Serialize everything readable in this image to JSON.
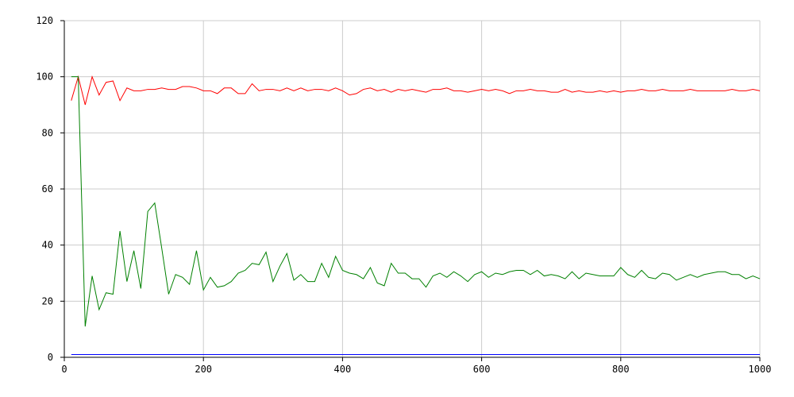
{
  "chart_data": {
    "type": "line",
    "title": "",
    "xlabel": "",
    "ylabel": "",
    "xlim": [
      0,
      1000
    ],
    "ylim": [
      0,
      120
    ],
    "grid": true,
    "x_ticks": [
      0,
      200,
      400,
      600,
      800,
      1000
    ],
    "y_ticks": [
      0,
      20,
      40,
      60,
      80,
      100,
      120
    ],
    "x_tick_labels": [
      "0",
      "200",
      "400",
      "600",
      "800",
      "1000"
    ],
    "y_tick_labels": [
      "0",
      "20",
      "40",
      "60",
      "80",
      "100",
      "120"
    ],
    "series": [
      {
        "color": "#ff0000",
        "x": [
          10,
          20,
          30,
          40,
          50,
          60,
          70,
          80,
          90,
          100,
          110,
          120,
          130,
          140,
          150,
          160,
          170,
          180,
          190,
          200,
          210,
          220,
          230,
          240,
          250,
          260,
          270,
          280,
          290,
          300,
          310,
          320,
          330,
          340,
          350,
          360,
          370,
          380,
          390,
          400,
          410,
          420,
          430,
          440,
          450,
          460,
          470,
          480,
          490,
          500,
          510,
          520,
          530,
          540,
          550,
          560,
          570,
          580,
          590,
          600,
          610,
          620,
          630,
          640,
          650,
          660,
          670,
          680,
          690,
          700,
          710,
          720,
          730,
          740,
          750,
          760,
          770,
          780,
          790,
          800,
          810,
          820,
          830,
          840,
          850,
          860,
          870,
          880,
          890,
          900,
          910,
          920,
          930,
          940,
          950,
          960,
          970,
          980,
          990,
          1000
        ],
        "y": [
          91.5,
          100,
          90,
          100,
          93.5,
          98,
          98.5,
          91.5,
          96,
          95,
          95,
          95.5,
          95.5,
          96,
          95.5,
          95.5,
          96.5,
          96.5,
          96,
          95,
          95,
          94,
          96,
          96,
          94,
          94,
          97.5,
          95,
          95.5,
          95.5,
          95,
          96,
          95,
          96,
          95,
          95.5,
          95.5,
          95,
          96,
          95,
          93.5,
          94,
          95.5,
          96,
          95,
          95.5,
          94.5,
          95.5,
          95,
          95.5,
          95,
          94.5,
          95.5,
          95.5,
          96,
          95,
          95,
          94.5,
          95,
          95.5,
          95,
          95.5,
          95,
          94,
          95,
          95,
          95.5,
          95,
          95,
          94.5,
          94.5,
          95.5,
          94.5,
          95,
          94.5,
          94.5,
          95,
          94.5,
          95,
          94.5,
          95,
          95,
          95.5,
          95,
          95,
          95.5,
          95,
          95,
          95,
          95.5,
          95,
          95,
          95,
          95,
          95,
          95.5,
          95,
          95,
          95.5,
          95
        ]
      },
      {
        "color": "#008000",
        "x": [
          10,
          20,
          30,
          40,
          50,
          60,
          70,
          80,
          90,
          100,
          110,
          120,
          130,
          140,
          150,
          160,
          170,
          180,
          190,
          200,
          210,
          220,
          230,
          240,
          250,
          260,
          270,
          280,
          290,
          300,
          310,
          320,
          330,
          340,
          350,
          360,
          370,
          380,
          390,
          400,
          410,
          420,
          430,
          440,
          450,
          460,
          470,
          480,
          490,
          500,
          510,
          520,
          530,
          540,
          550,
          560,
          570,
          580,
          590,
          600,
          610,
          620,
          630,
          640,
          650,
          660,
          670,
          680,
          690,
          700,
          710,
          720,
          730,
          740,
          750,
          760,
          770,
          780,
          790,
          800,
          810,
          820,
          830,
          840,
          850,
          860,
          870,
          880,
          890,
          900,
          910,
          920,
          930,
          940,
          950,
          960,
          970,
          980,
          990,
          1000
        ],
        "y": [
          100,
          100,
          11,
          29,
          17,
          23,
          22.5,
          45,
          27,
          38,
          24.5,
          52,
          55,
          39,
          22.5,
          29.5,
          28.5,
          26,
          38,
          24,
          28.5,
          25,
          25.5,
          27,
          30,
          31,
          33.5,
          33,
          37.5,
          27,
          32.5,
          37,
          27.5,
          29.5,
          27,
          27,
          33.5,
          28.5,
          36,
          31,
          30,
          29.5,
          28,
          32,
          26.5,
          25.5,
          33.5,
          30,
          30,
          28,
          28,
          25,
          29,
          30,
          28.5,
          30.5,
          29,
          27,
          29.5,
          30.5,
          28.5,
          30,
          29.5,
          30.5,
          31,
          31,
          29.5,
          31,
          29,
          29.5,
          29,
          28,
          30.5,
          28,
          30,
          29.5,
          29,
          29,
          29,
          32,
          29.5,
          28.5,
          31,
          28.5,
          28,
          30,
          29.5,
          27.5,
          28.5,
          29.5,
          28.5,
          29.5,
          30,
          30.5,
          30.5,
          29.5,
          29.5,
          28,
          29,
          28
        ]
      },
      {
        "color": "#0000ff",
        "x": [
          10,
          1000
        ],
        "y": [
          1,
          1
        ]
      }
    ]
  }
}
